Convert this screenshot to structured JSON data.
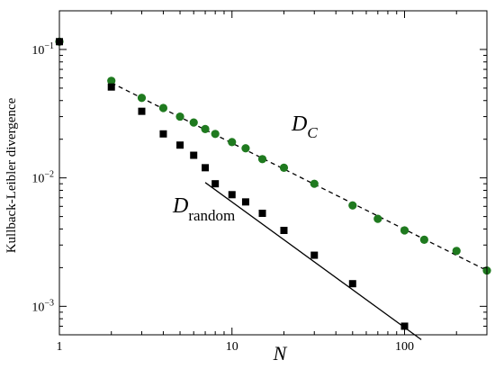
{
  "chart_data": {
    "type": "scatter",
    "xscale": "log",
    "yscale": "log",
    "xlim": [
      1,
      300
    ],
    "ylim": [
      0.0006,
      0.2
    ],
    "xlabel": "N",
    "ylabel": "Kullback-Leibler divergence",
    "x_ticks": [
      {
        "value": 1,
        "label": "1"
      },
      {
        "value": 10,
        "label": "10"
      },
      {
        "value": 100,
        "label": "100"
      }
    ],
    "y_ticks": [
      {
        "value": 0.001,
        "base": "10",
        "exp": "−3"
      },
      {
        "value": 0.01,
        "base": "10",
        "exp": "−2"
      },
      {
        "value": 0.1,
        "base": "10",
        "exp": "−1"
      }
    ],
    "grid": false,
    "colors": {
      "green": "#1f7a1f",
      "black": "#000000"
    },
    "series": [
      {
        "marker": "circle",
        "color": "#1f7a1f",
        "x": [
          1,
          2,
          3,
          4,
          5,
          6,
          7,
          8,
          10,
          12,
          15,
          20,
          30,
          50,
          70,
          100,
          130,
          200,
          300
        ],
        "y": [
          0.115,
          0.057,
          0.042,
          0.035,
          0.03,
          0.027,
          0.024,
          0.022,
          0.019,
          0.017,
          0.014,
          0.012,
          0.009,
          0.0061,
          0.0048,
          0.0039,
          0.0033,
          0.0027,
          0.0019
        ]
      },
      {
        "marker": "square",
        "color": "#000000",
        "x": [
          1,
          2,
          3,
          4,
          5,
          6,
          7,
          8,
          10,
          12,
          15,
          20,
          30,
          50,
          100
        ],
        "y": [
          0.115,
          0.051,
          0.033,
          0.022,
          0.018,
          0.015,
          0.012,
          0.009,
          0.0074,
          0.0065,
          0.0053,
          0.0039,
          0.0025,
          0.0015,
          0.0007
        ]
      }
    ],
    "fit_lines": [
      {
        "style": "dashed",
        "x": [
          2,
          300
        ],
        "y": [
          0.055,
          0.0019
        ]
      },
      {
        "style": "solid",
        "x": [
          7,
          125
        ],
        "y": [
          0.0092,
          0.00055
        ]
      }
    ],
    "annotations": [
      {
        "main": "D",
        "sub": "C"
      },
      {
        "main": "D",
        "sub": "random"
      }
    ]
  }
}
